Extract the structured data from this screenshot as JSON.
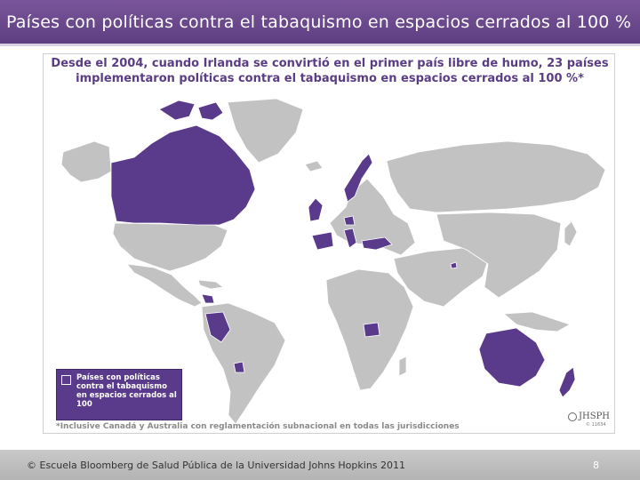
{
  "slide": {
    "title": "Países con políticas contra el tabaquismo en espacios cerrados al 100 %",
    "footer": "© Escuela Bloomberg de Salud Pública de la Universidad Johns Hopkins 2011",
    "page_number": "8"
  },
  "figure": {
    "headline_line1": "Desde el 2004, cuando Irlanda se convirtió en el primer país libre de humo, 23 países",
    "headline_line2": "implementaron políticas contra el tabaquismo en espacios cerrados al 100 %*",
    "legend_label": "Países con políticas contra el tabaquismo en espacios cerrados al 100",
    "footnote": "*Inclusive Canadá y Australia con reglamentación subnacional en todas las jurisdicciones",
    "logo_text": "JHSPH",
    "logo_small": "© 11634"
  },
  "colors": {
    "highlight": "#5a3a8a",
    "land": "#c2c2c2",
    "title_bar": "#6b4a8c",
    "footer_bar": "#bdbdbd"
  }
}
